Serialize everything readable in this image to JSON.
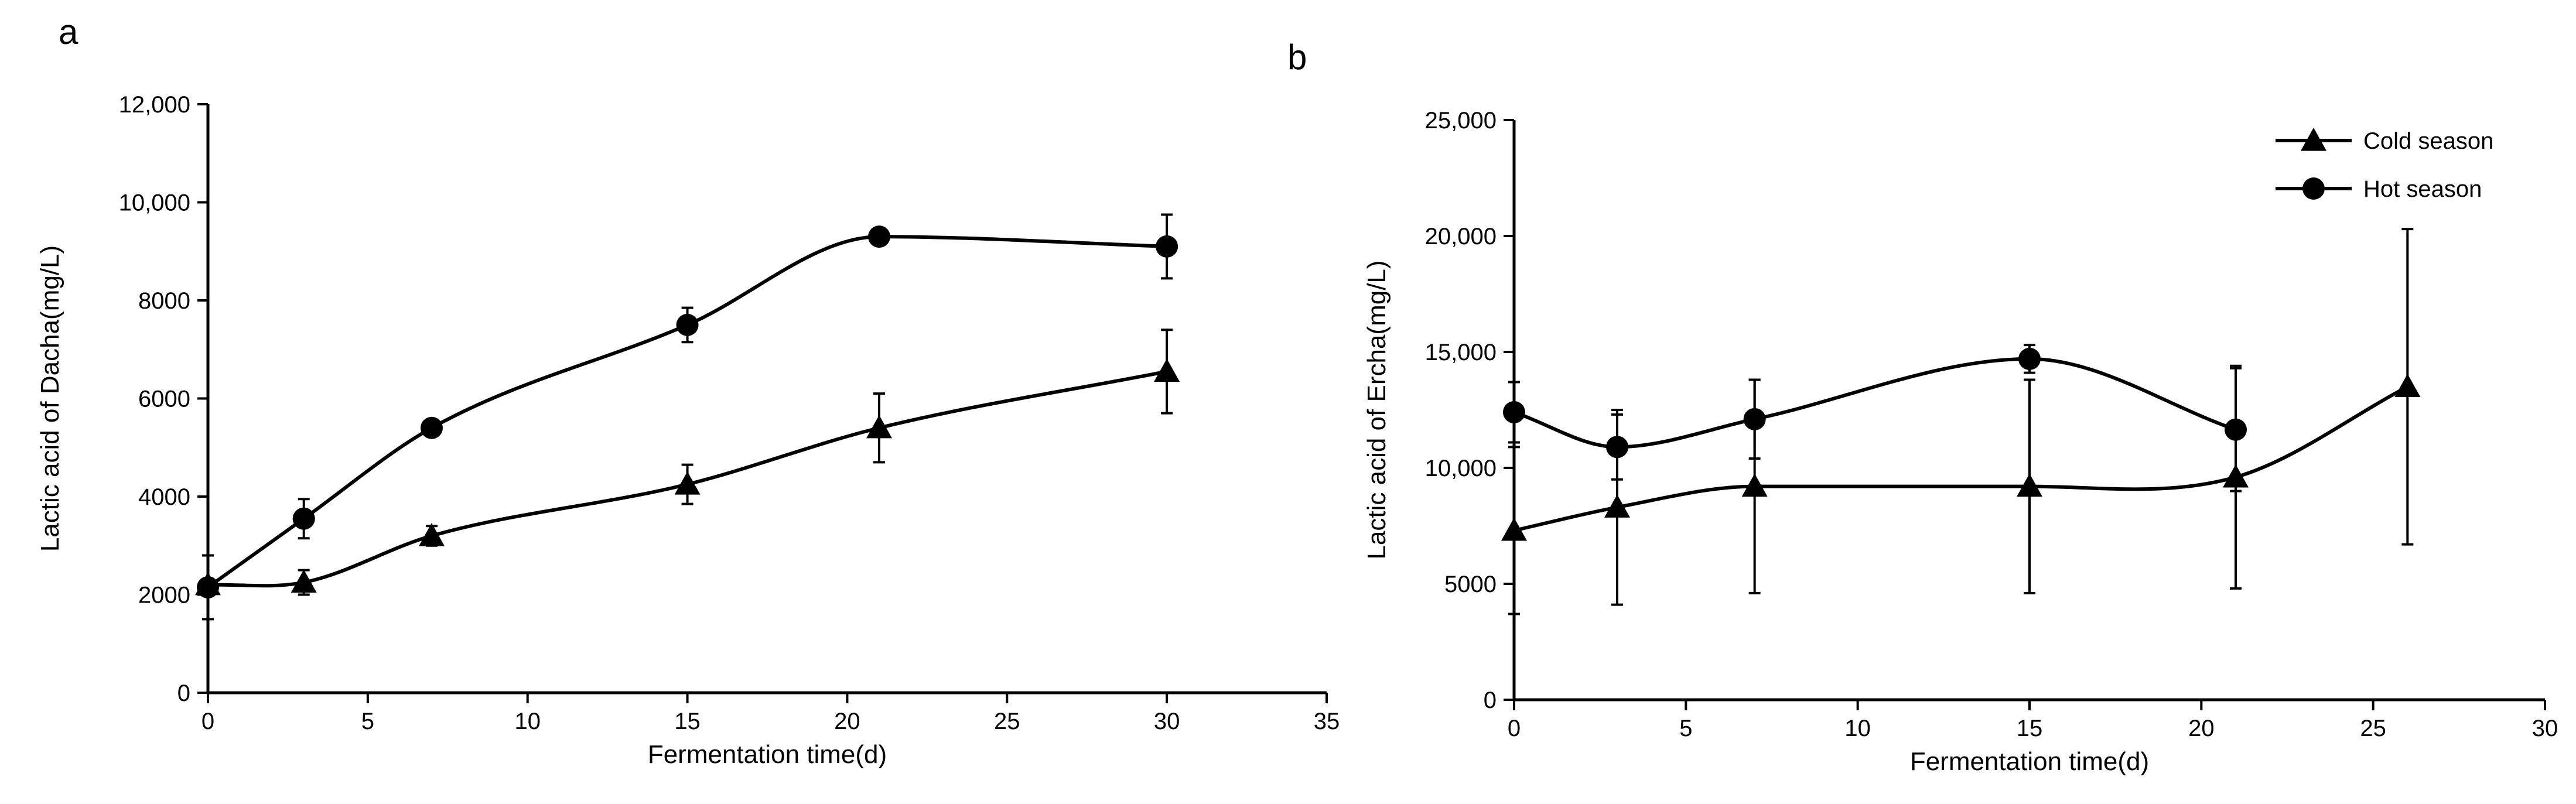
{
  "chart_data": [
    {
      "panel_label": "a",
      "type": "line",
      "xlabel": "Fermentation time(d)",
      "ylabel": "Lactic acid of Dacha(mg/L)",
      "xlim": [
        0,
        35
      ],
      "ylim": [
        0,
        12000
      ],
      "x_ticks": [
        0,
        5,
        10,
        15,
        20,
        25,
        30,
        35
      ],
      "x_tick_labels": [
        "0",
        "5",
        "10",
        "15",
        "20",
        "25",
        "30",
        "35"
      ],
      "y_ticks": [
        0,
        2000,
        4000,
        6000,
        8000,
        10000,
        12000
      ],
      "y_tick_labels": [
        "0",
        "2000",
        "4000",
        "6000",
        "8000",
        "10,000",
        "12,000"
      ],
      "grid": false,
      "legend": false,
      "series": [
        {
          "marker": "triangle",
          "x": [
            0,
            3,
            7,
            15,
            21,
            30
          ],
          "y": [
            2200,
            2250,
            3200,
            4250,
            5400,
            6550
          ],
          "err": [
            0,
            250,
            200,
            400,
            700,
            850
          ]
        },
        {
          "marker": "circle",
          "x": [
            0,
            3,
            7,
            15,
            21,
            30
          ],
          "y": [
            2150,
            3550,
            5400,
            7500,
            9300,
            9100
          ],
          "err": [
            650,
            400,
            100,
            350,
            0,
            650
          ]
        }
      ]
    },
    {
      "panel_label": "b",
      "type": "line",
      "xlabel": "Fermentation time(d)",
      "ylabel": "Lactic acid of  Ercha(mg/L)",
      "xlim": [
        0,
        30
      ],
      "ylim": [
        0,
        25000
      ],
      "x_ticks": [
        0,
        5,
        10,
        15,
        20,
        25,
        30
      ],
      "x_tick_labels": [
        "0",
        "5",
        "10",
        "15",
        "20",
        "25",
        "30"
      ],
      "y_ticks": [
        0,
        5000,
        10000,
        15000,
        20000,
        25000
      ],
      "y_tick_labels": [
        "0",
        "5000",
        "10,000",
        "15,000",
        "20,000",
        "25,000"
      ],
      "grid": false,
      "legend": "top-right",
      "series": [
        {
          "name": "Cold season",
          "marker": "triangle",
          "x": [
            0,
            3,
            7,
            15,
            21,
            26
          ],
          "y": [
            7300,
            8300,
            9200,
            9200,
            9600,
            13500
          ],
          "err": [
            3600,
            4200,
            4600,
            4600,
            4800,
            6800
          ]
        },
        {
          "name": "Hot season",
          "marker": "circle",
          "x": [
            0,
            3,
            7,
            15,
            21
          ],
          "y": [
            12400,
            10900,
            12100,
            14700,
            11650
          ],
          "err": [
            1300,
            1400,
            1700,
            600,
            2650
          ]
        }
      ]
    }
  ]
}
